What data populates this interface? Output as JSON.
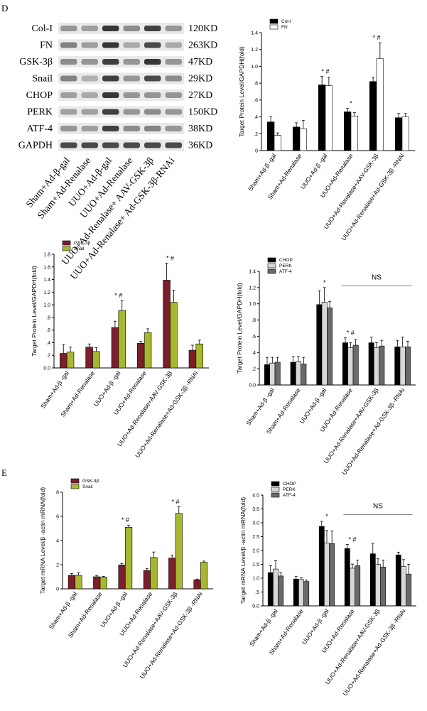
{
  "panel_labels": {
    "d": "D",
    "e": "E"
  },
  "blot": {
    "bands": [
      {
        "name": "Col-I",
        "size": "120KD"
      },
      {
        "name": "FN",
        "size": "263KD"
      },
      {
        "name": "GSK-3β",
        "size": "47KD"
      },
      {
        "name": "Snail",
        "size": "29KD"
      },
      {
        "name": "CHOP",
        "size": "27KD"
      },
      {
        "name": "PERK",
        "size": "150KD"
      },
      {
        "name": "ATF-4",
        "size": "38KD"
      },
      {
        "name": "GAPDH",
        "size": "36KD"
      }
    ],
    "lanes": [
      "Sham+Ad-β-gal",
      "Sham+Ad-Renalase",
      "UUO+Ad-β-gal",
      "UUO+Ad-Renalase",
      "UUO+Ad-Renalase+ AAV-GSK-3β",
      "UUO+Ad-Renalase+ Ad-GSK-3β-RNAi"
    ],
    "intensity": [
      [
        0.45,
        0.4,
        0.95,
        0.5,
        0.9,
        0.45
      ],
      [
        0.55,
        0.4,
        0.95,
        0.35,
        0.85,
        0.35
      ],
      [
        0.5,
        0.45,
        0.9,
        0.45,
        0.95,
        0.45
      ],
      [
        0.55,
        0.3,
        0.9,
        0.45,
        0.85,
        0.5
      ],
      [
        0.4,
        0.35,
        0.95,
        0.45,
        0.45,
        0.45
      ],
      [
        0.4,
        0.4,
        0.9,
        0.45,
        0.5,
        0.45
      ],
      [
        0.45,
        0.4,
        0.9,
        0.5,
        0.55,
        0.45
      ],
      [
        0.85,
        0.85,
        0.85,
        0.85,
        0.85,
        0.85
      ]
    ]
  },
  "chart_data": [
    {
      "id": "chart-d1",
      "type": "bar",
      "title": "",
      "xlabel": "",
      "ylabel": "Target Protein Level/GAPDH(fold)",
      "ylim": [
        0,
        1.4
      ],
      "yticks": [
        "0",
        ".2",
        ".4",
        ".6",
        ".8",
        "1.0",
        "1.2",
        "1.4"
      ],
      "legend_position": "top-left",
      "categories": [
        "Sham+Ad-β -gal",
        "Sham+Ad-Renalase",
        "UUO+Ad-β -gal",
        "UUO+Ad-Renalase",
        "UUO+Ad-Renalase+AAV-GSK-3β",
        "UUO+Ad-Renalase+Ad-GSK-3β -RNAi"
      ],
      "series": [
        {
          "name": "Col-I",
          "color": "#000000",
          "values": [
            0.34,
            0.28,
            0.78,
            0.46,
            0.82,
            0.39
          ],
          "errors": [
            0.06,
            0.05,
            0.1,
            0.04,
            0.05,
            0.05
          ]
        },
        {
          "name": "FN",
          "color": "#ffffff",
          "values": [
            0.18,
            0.26,
            0.77,
            0.41,
            1.09,
            0.4
          ],
          "errors": [
            0.03,
            0.1,
            0.1,
            0.04,
            0.19,
            0.04
          ]
        }
      ],
      "annotations": [
        {
          "category_index": 2,
          "text": "* #"
        },
        {
          "category_index": 3,
          "text": "*"
        },
        {
          "category_index": 4,
          "text": "* #"
        }
      ]
    },
    {
      "id": "chart-d2",
      "type": "bar",
      "title": "",
      "xlabel": "",
      "ylabel": "Target Protein Level/GAPDH(fold)",
      "ylim": [
        0,
        1.8
      ],
      "yticks": [
        "0.0",
        ".2",
        ".4",
        ".6",
        ".8",
        "1.0",
        "1.2",
        "1.4",
        "1.6",
        "1.8"
      ],
      "legend_position": "top-left",
      "categories": [
        "Sham+Ad-β -gal",
        "Sham+Ad-Renalase",
        "UUO+Ad-β -gal",
        "UUO+Ad-Renalase",
        "UUO+Ad-Renalase+AAV-GSK-3β",
        "UUO+Ad-Renalase+Ad-GSK-3β -RNAi"
      ],
      "series": [
        {
          "name": "GSK-3β",
          "color": "#7b1f2a",
          "values": [
            0.23,
            0.33,
            0.64,
            0.39,
            1.39,
            0.28
          ],
          "errors": [
            0.14,
            0.05,
            0.1,
            0.03,
            0.27,
            0.08
          ]
        },
        {
          "name": "Snail",
          "color": "#a8b82e",
          "values": [
            0.25,
            0.26,
            0.91,
            0.56,
            1.04,
            0.38
          ],
          "errors": [
            0.08,
            0.06,
            0.16,
            0.06,
            0.19,
            0.06
          ]
        }
      ],
      "annotations": [
        {
          "category_index": 2,
          "text": "* #"
        },
        {
          "category_index": 4,
          "text": "* #"
        }
      ]
    },
    {
      "id": "chart-d3",
      "type": "bar",
      "title": "",
      "xlabel": "",
      "ylabel": "Target Protein Level/GAPDH(fold)",
      "ylim": [
        0,
        1.4
      ],
      "yticks": [
        "0.0",
        ".2",
        ".4",
        ".6",
        ".8",
        "1.0",
        "1.2",
        "1.4"
      ],
      "legend_position": "top-left",
      "categories": [
        "Sham+Ad-β -gal",
        "Sham+Ad-Renalase",
        "UUO+Ad-β -gal",
        "UUO+Ad-Renalase",
        "UUO+Ad-Renalase+AAV-GSK-3β",
        "UUO+Ad-Renalase+Ad-GSK-3β -RNAi"
      ],
      "series": [
        {
          "name": "CHOP",
          "color": "#000000",
          "values": [
            0.25,
            0.28,
            0.99,
            0.52,
            0.52,
            0.47
          ],
          "errors": [
            0.09,
            0.07,
            0.17,
            0.06,
            0.07,
            0.08
          ]
        },
        {
          "name": "PERK",
          "color": "#d8d8d8",
          "values": [
            0.27,
            0.29,
            1.02,
            0.46,
            0.46,
            0.47
          ],
          "errors": [
            0.07,
            0.06,
            0.18,
            0.06,
            0.06,
            0.12
          ]
        },
        {
          "name": "ATF-4",
          "color": "#6a6a6a",
          "values": [
            0.28,
            0.26,
            0.95,
            0.49,
            0.48,
            0.47
          ],
          "errors": [
            0.06,
            0.08,
            0.08,
            0.07,
            0.07,
            0.07
          ]
        }
      ],
      "annotations": [
        {
          "category_index": 2,
          "text": "*"
        },
        {
          "category_index": 3,
          "text": "* #"
        }
      ],
      "bracket": {
        "from_index": 3,
        "to_index": 5,
        "level": 1.22,
        "label": "NS"
      }
    },
    {
      "id": "chart-e1",
      "type": "bar",
      "title": "",
      "xlabel": "",
      "ylabel": "Target mRNA Level/β -actin mRNA(fold)",
      "ylim": [
        0,
        8
      ],
      "yticks": [
        "0",
        "2",
        "4",
        "6",
        "8"
      ],
      "legend_position": "top-left",
      "categories": [
        "Sham+Ad-β -gal",
        "Sham+Ad-Renalase",
        "UUO+Ad-β -gal",
        "UUO+Ad-Renalase",
        "UUO+Ad-Renalase+AAV-GSK-3β",
        "UUO+Ad-Renalase+Ad-GSK-3β -RNAi"
      ],
      "series": [
        {
          "name": "GSK-3β",
          "color": "#7b1f2a",
          "values": [
            1.12,
            1.0,
            1.98,
            1.52,
            2.55,
            0.75
          ],
          "errors": [
            0.15,
            0.08,
            0.12,
            0.15,
            0.25,
            0.06
          ]
        },
        {
          "name": "Snail",
          "color": "#a8b82e",
          "values": [
            1.12,
            0.98,
            5.1,
            2.6,
            6.25,
            2.2
          ],
          "errors": [
            0.2,
            0.05,
            0.18,
            0.45,
            0.55,
            0.1
          ]
        }
      ],
      "annotations": [
        {
          "category_index": 2,
          "text": "* #"
        },
        {
          "category_index": 4,
          "text": "* #"
        }
      ]
    },
    {
      "id": "chart-e2",
      "type": "bar",
      "title": "",
      "xlabel": "",
      "ylabel": "Target mRNA Level/β -actin mRNA(fold)",
      "ylim": [
        0,
        4
      ],
      "yticks": [
        "0.0",
        ".5",
        "1.0",
        "1.5",
        "2.0",
        "2.5",
        "3.0",
        "3.5",
        "4.0"
      ],
      "legend_position": "top-left",
      "categories": [
        "Sham+Ad-β -gal",
        "Sham+Ad-Renalase",
        "UUO+Ad-β -gal",
        "UUO+Ad-Renalase",
        "UUO+Ad-Renalase+AAV-GSK-3β",
        "UUO+Ad-Renalase+Ad-GSK-3β -RNAi"
      ],
      "series": [
        {
          "name": "CHOP",
          "color": "#000000",
          "values": [
            1.2,
            0.97,
            2.87,
            2.07,
            1.88,
            1.84
          ],
          "errors": [
            0.25,
            0.1,
            0.18,
            0.15,
            0.38,
            0.1
          ]
        },
        {
          "name": "PERK",
          "color": "#d8d8d8",
          "values": [
            1.33,
            0.95,
            2.27,
            1.36,
            1.5,
            1.42
          ],
          "errors": [
            0.3,
            0.06,
            0.45,
            0.15,
            0.2,
            0.25
          ]
        },
        {
          "name": "ATF-4",
          "color": "#6a6a6a",
          "values": [
            1.08,
            0.88,
            2.25,
            1.45,
            1.4,
            1.15
          ],
          "errors": [
            0.12,
            0.05,
            0.45,
            0.2,
            0.25,
            0.35
          ]
        }
      ],
      "annotations": [
        {
          "category_index": 2,
          "text": "*"
        },
        {
          "category_index": 3,
          "text": "* #"
        }
      ],
      "bracket": {
        "from_index": 3,
        "to_index": 5,
        "level": 3.3,
        "label": "NS"
      }
    }
  ]
}
